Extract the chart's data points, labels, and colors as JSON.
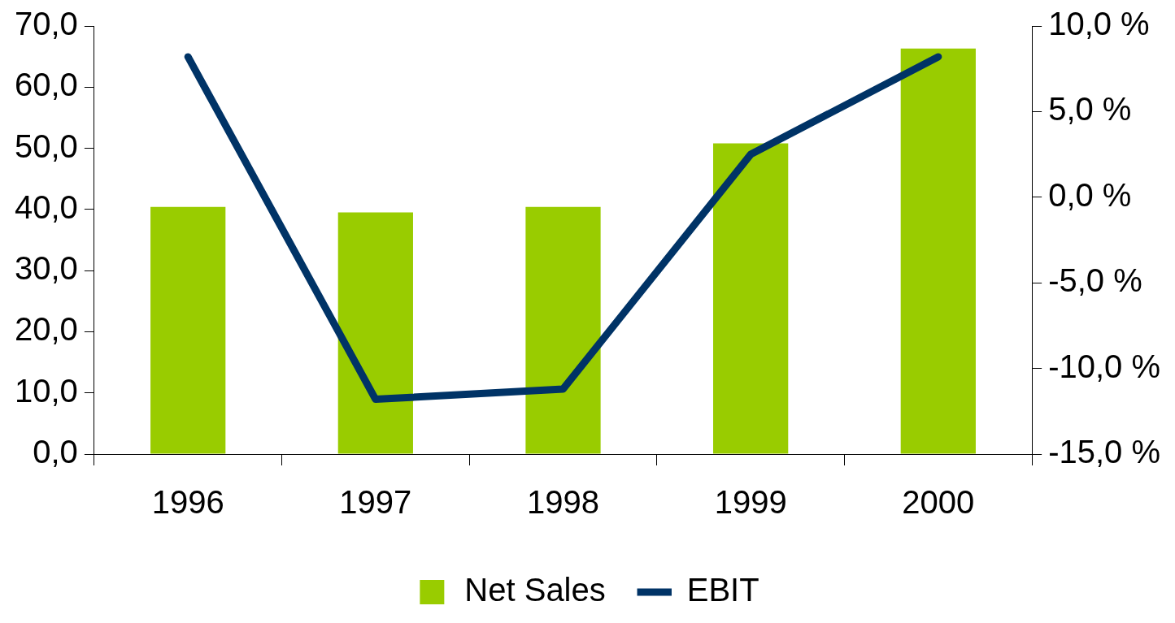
{
  "chart_data": {
    "type": "bar",
    "categories": [
      "1996",
      "1997",
      "1998",
      "1999",
      "2000"
    ],
    "series": [
      {
        "name": "Net Sales",
        "color": "#99cc00",
        "values": [
          40.4,
          39.5,
          40.4,
          50.8,
          66.3
        ]
      },
      {
        "name": "EBIT",
        "type": "line",
        "axis": "y2",
        "color": "#003366",
        "values": [
          8.2,
          -11.8,
          -11.2,
          2.5,
          8.2
        ]
      }
    ],
    "ylim": [
      0,
      70
    ],
    "yticks": [
      {
        "value": 0,
        "label": "0,0"
      },
      {
        "value": 10,
        "label": "10,0"
      },
      {
        "value": 20,
        "label": "20,0"
      },
      {
        "value": 30,
        "label": "30,0"
      },
      {
        "value": 40,
        "label": "40,0"
      },
      {
        "value": 50,
        "label": "50,0"
      },
      {
        "value": 60,
        "label": "60,0"
      },
      {
        "value": 70,
        "label": "70,0"
      }
    ],
    "y2lim": [
      -15,
      10
    ],
    "y2ticks": [
      {
        "value": -15,
        "label": "-15,0 %"
      },
      {
        "value": -10,
        "label": "-10,0 %"
      },
      {
        "value": -5,
        "label": "-5,0 %"
      },
      {
        "value": 0,
        "label": "0,0 %"
      },
      {
        "value": 5,
        "label": "5,0 %"
      },
      {
        "value": 10,
        "label": "10,0 %"
      }
    ],
    "legend": "bottom",
    "grid": false,
    "marker": "none"
  }
}
